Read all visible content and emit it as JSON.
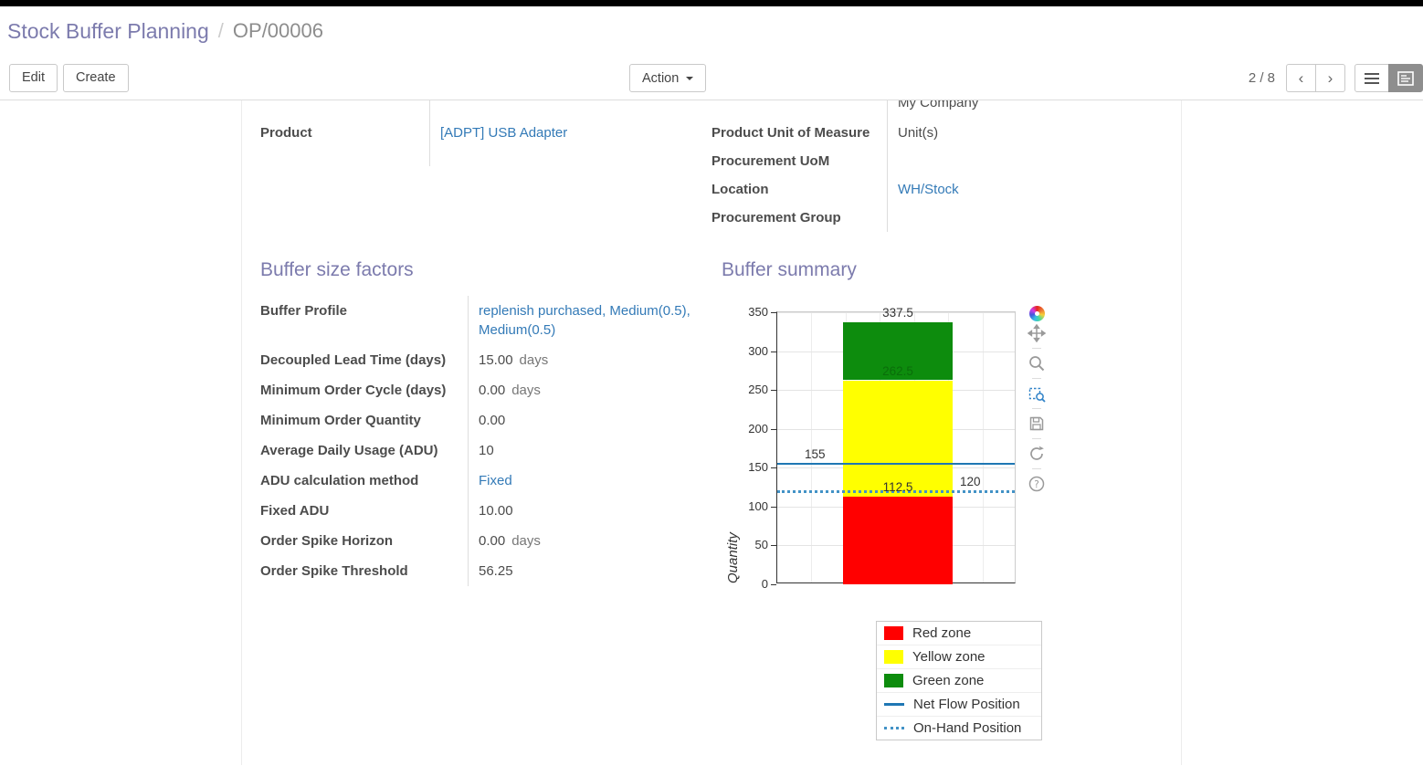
{
  "breadcrumb": {
    "parent": "Stock Buffer Planning",
    "separator": "/",
    "current": "OP/00006"
  },
  "control_panel": {
    "edit": "Edit",
    "create": "Create",
    "action": "Action",
    "pager": "2 / 8",
    "prev": "‹",
    "next": "›"
  },
  "form": {
    "product_label": "Product",
    "product_value": "[ADPT] USB Adapter",
    "company_partial": "My Company",
    "right_rows": [
      {
        "label": "Product Unit of Measure",
        "value": "Unit(s)"
      },
      {
        "label": "Procurement UoM",
        "value": ""
      },
      {
        "label": "Location",
        "value": "WH/Stock"
      },
      {
        "label": "Procurement Group",
        "value": ""
      }
    ],
    "factors_title": "Buffer size factors",
    "factors_rows": [
      {
        "label": "Buffer Profile",
        "value": "replenish purchased, Medium(0.5), Medium(0.5)"
      },
      {
        "label": "Decoupled Lead Time (days)",
        "value": "15.00",
        "suffix": "days"
      },
      {
        "label": "Minimum Order Cycle (days)",
        "value": "0.00",
        "suffix": "days"
      },
      {
        "label": "Minimum Order Quantity",
        "value": "0.00"
      },
      {
        "label": "Average Daily Usage (ADU)",
        "value": "10"
      },
      {
        "label": "ADU calculation method",
        "value": "Fixed"
      },
      {
        "label": "Fixed ADU",
        "value": "10.00"
      },
      {
        "label": "Order Spike Horizon",
        "value": "0.00",
        "suffix": "days"
      },
      {
        "label": "Order Spike Threshold",
        "value": "56.25"
      }
    ],
    "summary_title": "Buffer summary"
  },
  "chart_data": {
    "type": "bar",
    "title": "Buffer summary",
    "ylabel": "Quantity",
    "ylim": [
      0,
      350
    ],
    "yticks": [
      0,
      50,
      100,
      150,
      200,
      250,
      300,
      350
    ],
    "grid": true,
    "zones": [
      {
        "name": "Red zone",
        "from": 0,
        "to": 112.5,
        "color": "#ff0000"
      },
      {
        "name": "Yellow zone",
        "from": 112.5,
        "to": 262.5,
        "color": "#ffff00"
      },
      {
        "name": "Green zone",
        "from": 262.5,
        "to": 337.5,
        "color": "#0d8c0d"
      }
    ],
    "lines": [
      {
        "name": "Net Flow Position",
        "value": 155,
        "style": "solid",
        "color": "#1f77b4"
      },
      {
        "name": "On-Hand Position",
        "value": 120,
        "style": "dotted",
        "color": "#4292c6"
      }
    ],
    "annotations": [
      {
        "text": "337.5",
        "value": 337.5,
        "align": "bar-center",
        "color": "#333333"
      },
      {
        "text": "262.5",
        "value": 262.5,
        "align": "bar-center",
        "color": "#0a6e0a"
      },
      {
        "text": "112.5",
        "value": 112.5,
        "align": "bar-center",
        "color": "#333333"
      },
      {
        "text": "155",
        "value": 155,
        "align": "left",
        "color": "#333333"
      },
      {
        "text": "120",
        "value": 120,
        "align": "right",
        "color": "#333333"
      }
    ],
    "legend_items": [
      {
        "label": "Red zone",
        "swatch": "rect",
        "color": "#ff0000"
      },
      {
        "label": "Yellow zone",
        "swatch": "rect",
        "color": "#ffff00"
      },
      {
        "label": "Green zone",
        "swatch": "rect",
        "color": "#0d8c0d"
      },
      {
        "label": "Net Flow Position",
        "swatch": "line",
        "color": "#1f77b4"
      },
      {
        "label": "On-Hand Position",
        "swatch": "dotted",
        "color": "#4292c6"
      }
    ],
    "legend_position": "bottom-right"
  }
}
